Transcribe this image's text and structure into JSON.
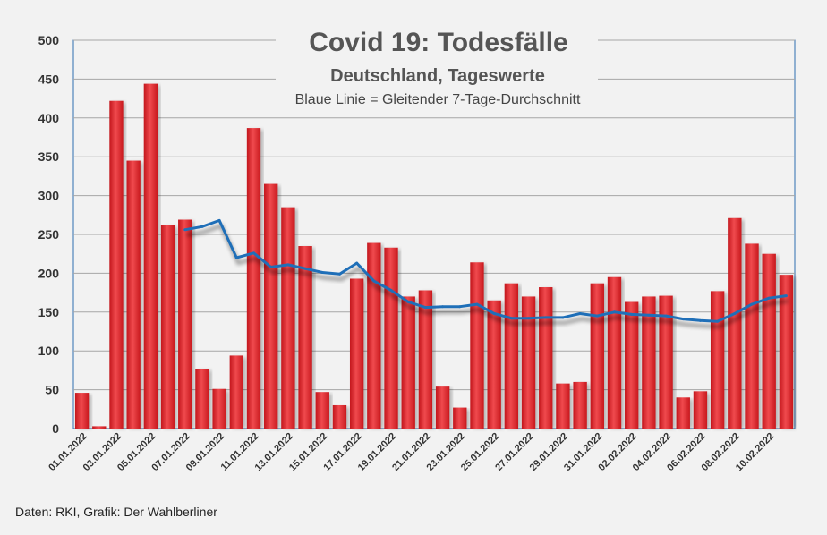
{
  "chart_data": {
    "type": "bar",
    "title": "Covid 19: Todesfälle",
    "subtitle": "Deutschland, Tageswerte",
    "note": "Blaue Linie = Gleitender 7-Tage-Durchschnitt",
    "ylim": [
      0,
      500
    ],
    "yticks": [
      0,
      50,
      100,
      150,
      200,
      250,
      300,
      350,
      400,
      450,
      500
    ],
    "grid": true,
    "x_tick_labels": [
      "01.01.2022",
      "03.01.2022",
      "05.01.2022",
      "07.01.2022",
      "09.01.2022",
      "11.01.2022",
      "13.01.2022",
      "15.01.2022",
      "17.01.2022",
      "19.01.2022",
      "21.01.2022",
      "23.01.2022",
      "25.01.2022",
      "27.01.2022",
      "29.01.2022",
      "31.01.2022",
      "02.02.2022",
      "04.02.2022",
      "06.02.2022",
      "08.02.2022",
      "10.02.2022"
    ],
    "categories": [
      "01.01.2022",
      "02.01.2022",
      "03.01.2022",
      "04.01.2022",
      "05.01.2022",
      "06.01.2022",
      "07.01.2022",
      "08.01.2022",
      "09.01.2022",
      "10.01.2022",
      "11.01.2022",
      "12.01.2022",
      "13.01.2022",
      "14.01.2022",
      "15.01.2022",
      "16.01.2022",
      "17.01.2022",
      "18.01.2022",
      "19.01.2022",
      "20.01.2022",
      "21.01.2022",
      "22.01.2022",
      "23.01.2022",
      "24.01.2022",
      "25.01.2022",
      "26.01.2022",
      "27.01.2022",
      "28.01.2022",
      "29.01.2022",
      "30.01.2022",
      "31.01.2022",
      "01.02.2022",
      "02.02.2022",
      "03.02.2022",
      "04.02.2022",
      "05.02.2022",
      "06.02.2022",
      "07.02.2022",
      "08.02.2022",
      "09.02.2022",
      "10.02.2022",
      "11.02.2022"
    ],
    "series": [
      {
        "type": "bar",
        "color": "#e8262b",
        "values": [
          46,
          3,
          422,
          345,
          444,
          262,
          269,
          77,
          51,
          94,
          387,
          315,
          285,
          235,
          47,
          30,
          193,
          239,
          233,
          170,
          178,
          54,
          27,
          214,
          165,
          187,
          170,
          182,
          58,
          60,
          187,
          195,
          163,
          170,
          171,
          40,
          48,
          177,
          271,
          238,
          225,
          198
        ]
      },
      {
        "type": "line",
        "color": "#1f6fb8",
        "values": [
          null,
          null,
          null,
          null,
          null,
          null,
          256,
          260,
          268,
          220,
          226,
          208,
          211,
          206,
          201,
          199,
          213,
          190,
          178,
          163,
          156,
          157,
          157,
          160,
          148,
          142,
          142,
          143,
          143,
          148,
          145,
          150,
          147,
          146,
          145,
          141,
          139,
          138,
          148,
          160,
          168,
          171
        ]
      }
    ]
  },
  "footer": {
    "source": "Daten: RKI, Grafik: Der Wahlberliner"
  }
}
